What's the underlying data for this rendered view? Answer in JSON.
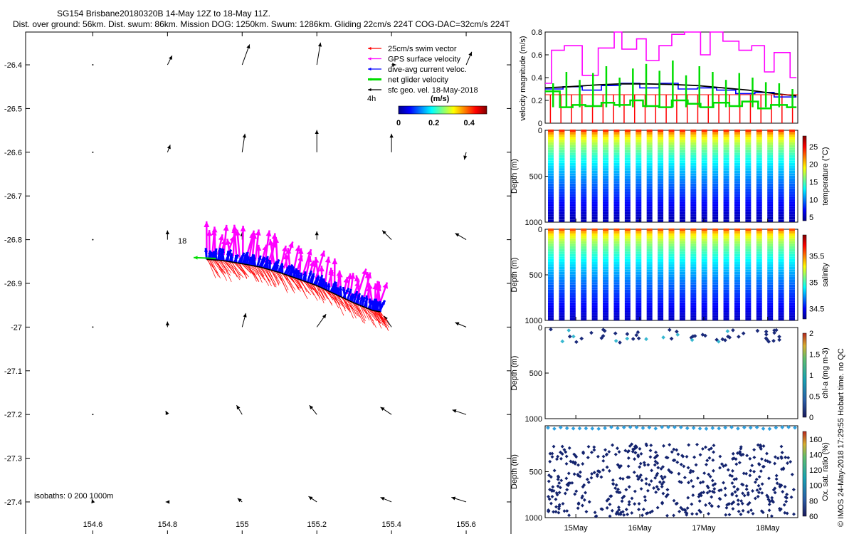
{
  "header": {
    "line1": "SG154 Brisbane20180320B 14-May 12Z to 18-May 11Z.",
    "line2": "Dist. over ground: 56km. Dist. swum: 86km. Mission DOG: 1250km. Swum: 1286km. Gliding 22cm/s 224T COG-DAC=32cm/s 224T"
  },
  "credit": "© IMOS 24-May-2018 17:29:55 Hobart time. no QC",
  "colors": {
    "swim": "#ff0000",
    "gps": "#ff00ff",
    "dac": "#0000ff",
    "net": "#00dd00",
    "geo": "#000000",
    "track": "#000000"
  },
  "chart_data": [
    {
      "type": "map",
      "id": "track-map",
      "xlim": [
        154.42,
        155.72
      ],
      "ylim": [
        -27.475,
        -26.325
      ],
      "xticks": [
        154.6,
        154.8,
        155,
        155.2,
        155.4,
        155.6
      ],
      "xtick_labels": [
        "154.6",
        "154.8",
        "155",
        "155.2",
        "155.4",
        "155.6"
      ],
      "yticks": [
        -26.4,
        -26.5,
        -26.6,
        -26.7,
        -26.8,
        -26.9,
        -27,
        -27.1,
        -27.2,
        -27.3,
        -27.4
      ],
      "ytick_labels": [
        "-26.4",
        "-26.5",
        "-26.6",
        "-26.7",
        "-26.8",
        "-26.9",
        "-27",
        "-27.1",
        "-27.2",
        "-27.3",
        "-27.4"
      ],
      "legend": {
        "placement": "top-right",
        "entries": [
          {
            "label": "25cm/s swim vector",
            "color": "#ff0000"
          },
          {
            "label": "GPS surface velocity",
            "color": "#ff00ff"
          },
          {
            "label": "dive-avg current veloc.",
            "color": "#0000ff"
          },
          {
            "label": "net glider velocity",
            "color": "#00dd00"
          },
          {
            "label": "sfc geo. vel. 18-May-2018",
            "color": "#000000"
          }
        ],
        "note": "4h",
        "colorbar_title": "(m/s)",
        "colorbar_ticks": [
          "0",
          "0.2",
          "0.4"
        ],
        "colorbar_range": [
          0,
          0.5
        ]
      },
      "track_label": "18",
      "isobaths_label": "isobaths: 0   200  1000m",
      "track": [
        [
          154.905,
          -26.845
        ],
        [
          154.95,
          -26.848
        ],
        [
          155.0,
          -26.855
        ],
        [
          155.05,
          -26.863
        ],
        [
          155.1,
          -26.875
        ],
        [
          155.15,
          -26.89
        ],
        [
          155.2,
          -26.905
        ],
        [
          155.25,
          -26.925
        ],
        [
          155.3,
          -26.945
        ],
        [
          155.35,
          -26.962
        ],
        [
          155.37,
          -26.965
        ]
      ],
      "geostrophic_field": {
        "lons": [
          154.6,
          154.8,
          155.0,
          155.2,
          155.4,
          155.6
        ],
        "lats": [
          -26.4,
          -26.6,
          -26.8,
          -27.0,
          -27.2,
          -27.4
        ],
        "u": [
          [
            0.0,
            0.05,
            0.08,
            0.04,
            0.05,
            0.06
          ],
          [
            0.0,
            0.03,
            0.03,
            0.0,
            0.0,
            -0.02
          ],
          [
            0.0,
            0.0,
            0.0,
            0.0,
            -0.1,
            -0.12
          ],
          [
            0.0,
            0.0,
            0.04,
            0.1,
            -0.08,
            -0.12
          ],
          [
            0.0,
            -0.02,
            -0.06,
            -0.08,
            -0.12,
            -0.15
          ],
          [
            -0.01,
            -0.02,
            -0.05,
            -0.09,
            -0.12,
            -0.16
          ]
        ],
        "v": [
          [
            0.0,
            0.1,
            0.22,
            0.24,
            0.0,
            0.14
          ],
          [
            0.0,
            0.08,
            0.2,
            0.24,
            0.2,
            -0.08
          ],
          [
            0.0,
            0.1,
            0.08,
            0.09,
            0.1,
            0.07
          ],
          [
            0.0,
            0.06,
            0.15,
            0.14,
            0.12,
            0.05
          ],
          [
            0.0,
            0.04,
            0.1,
            0.1,
            0.08,
            0.05
          ],
          [
            0.03,
            0.0,
            0.04,
            0.06,
            0.05,
            0.05
          ]
        ]
      }
    },
    {
      "type": "line",
      "id": "velocity-magnitude",
      "ylabel": "velocity magnitude (m/s)",
      "xlim": [
        14.52,
        18.47
      ],
      "ylim": [
        0,
        0.8
      ],
      "yticks": [
        0,
        0.2,
        0.4,
        0.6,
        0.8
      ],
      "ytick_labels": [
        "0",
        "0.2",
        "0.4",
        "0.6",
        "0.8"
      ],
      "series": [
        {
          "color": "#ff00ff",
          "style": "step",
          "x": [
            14.52,
            14.62,
            14.82,
            15.1,
            15.35,
            15.6,
            15.72,
            15.95,
            16.1,
            16.3,
            16.5,
            16.7,
            16.95,
            17.1,
            17.3,
            17.55,
            17.75,
            17.95,
            18.1,
            18.35,
            18.45
          ],
          "y": [
            0.35,
            0.64,
            0.68,
            0.42,
            0.66,
            0.8,
            0.65,
            0.74,
            0.55,
            0.68,
            0.78,
            0.8,
            0.6,
            0.8,
            0.72,
            0.64,
            0.68,
            0.45,
            0.62,
            0.4,
            0.4
          ]
        },
        {
          "color": "#00dd00",
          "style": "step",
          "x": [
            14.52,
            14.75,
            14.95,
            15.15,
            15.4,
            15.6,
            15.85,
            16.05,
            16.3,
            16.5,
            16.75,
            16.95,
            17.15,
            17.4,
            17.6,
            17.85,
            18.05,
            18.3,
            18.45
          ],
          "y": [
            0.28,
            0.14,
            0.16,
            0.15,
            0.18,
            0.16,
            0.2,
            0.15,
            0.14,
            0.2,
            0.17,
            0.14,
            0.18,
            0.15,
            0.19,
            0.13,
            0.16,
            0.14,
            0.14
          ]
        },
        {
          "color": "#0000ff",
          "style": "step",
          "x": [
            14.52,
            14.8,
            15.1,
            15.4,
            15.7,
            16.0,
            16.3,
            16.6,
            16.9,
            17.2,
            17.5,
            17.8,
            18.1,
            18.45
          ],
          "y": [
            0.3,
            0.32,
            0.29,
            0.33,
            0.35,
            0.31,
            0.35,
            0.3,
            0.31,
            0.29,
            0.26,
            0.27,
            0.23,
            0.23
          ]
        },
        {
          "color": "#000000",
          "style": "line",
          "x": [
            14.52,
            14.9,
            15.3,
            15.7,
            16.1,
            16.5,
            16.9,
            17.3,
            17.7,
            18.1,
            18.45
          ],
          "y": [
            0.31,
            0.32,
            0.335,
            0.345,
            0.345,
            0.34,
            0.33,
            0.31,
            0.29,
            0.26,
            0.24
          ]
        },
        {
          "color": "#ff0000",
          "style": "level",
          "y": 0.25
        }
      ],
      "red_spikes_every_day": 6,
      "green_spikes": [
        0.35,
        0.45,
        0.38,
        0.44,
        0.5,
        0.4,
        0.48,
        0.52,
        0.46,
        0.55,
        0.42,
        0.5,
        0.45,
        0.38,
        0.44,
        0.4,
        0.36,
        0.35,
        0.3
      ]
    },
    {
      "type": "scatter",
      "id": "temperature-section",
      "variable": "temperature",
      "ylabel": "Depth (m)",
      "colorbar_label": "temperature (°C)",
      "clim": [
        4,
        28
      ],
      "colorbar_ticks": [
        5,
        10,
        15,
        20,
        25
      ],
      "colorbar_tick_labels": [
        "5",
        "10",
        "15",
        "20",
        "25"
      ],
      "yticks": [
        0,
        500,
        1000
      ],
      "ytick_labels": [
        "0",
        "500",
        "1000"
      ],
      "dives": 23,
      "profile_depth": 1000,
      "surface_value": 26,
      "deep_value": 5
    },
    {
      "type": "scatter",
      "id": "salinity-section",
      "variable": "salinity",
      "ylabel": "Depth (m)",
      "colorbar_label": "salinity",
      "clim": [
        34.3,
        35.9
      ],
      "colorbar_ticks": [
        34.5,
        35,
        35.5
      ],
      "colorbar_tick_labels": [
        "34.5",
        "35",
        "35.5"
      ],
      "yticks": [
        0,
        500,
        1000
      ],
      "ytick_labels": [
        "0",
        "500",
        "1000"
      ],
      "dives": 23,
      "profile_depth": 1000,
      "surface_value": 35.7,
      "deep_value": 34.4
    },
    {
      "type": "scatter",
      "id": "chla-section",
      "variable": "chl-a",
      "ylabel": "Depth (m)",
      "colorbar_label": "chl-a (mg m-3)",
      "clim": [
        0,
        2
      ],
      "colorbar_ticks": [
        0,
        0.5,
        1,
        1.5,
        2
      ],
      "colorbar_tick_labels": [
        "0",
        "0.5",
        "1",
        "1.5",
        "2"
      ],
      "yticks": [
        0,
        500,
        1000
      ],
      "ytick_labels": [
        "0",
        "500",
        "1000"
      ],
      "max_depth": 150
    },
    {
      "type": "scatter",
      "id": "oxygen-section",
      "variable": "oxygen saturation",
      "ylabel": "Depth (m)",
      "colorbar_label": "Ox. sat. ratio (%)",
      "clim": [
        60,
        170
      ],
      "colorbar_ticks": [
        60,
        80,
        100,
        120,
        140,
        160
      ],
      "colorbar_tick_labels": [
        "60",
        "80",
        "100",
        "120",
        "140",
        "160"
      ],
      "yticks": [
        500,
        1000
      ],
      "ytick_labels": [
        "500",
        "1000"
      ],
      "time_ticks": [
        15,
        16,
        17,
        18
      ],
      "time_tick_labels": [
        "15May",
        "16May",
        "17May",
        "18May"
      ],
      "xlim": [
        14.52,
        18.47
      ]
    }
  ]
}
